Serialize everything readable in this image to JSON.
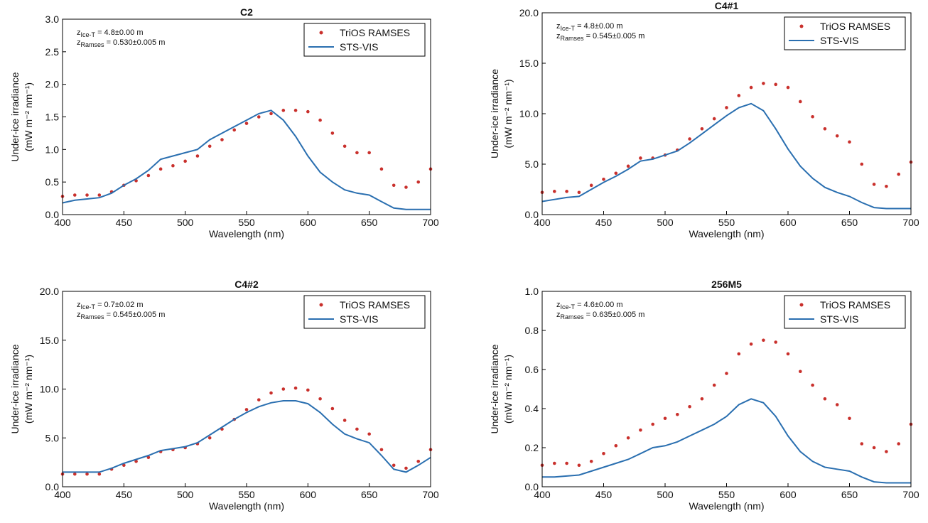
{
  "chart_data": [
    {
      "type": "line",
      "title": "C2",
      "xlabel": "Wavelength (nm)",
      "ylabel": [
        "Under-ice irradiance",
        "(mW m⁻² nm⁻¹)"
      ],
      "x": [
        400,
        410,
        420,
        430,
        440,
        450,
        460,
        470,
        480,
        490,
        500,
        510,
        520,
        530,
        540,
        550,
        560,
        570,
        580,
        590,
        600,
        610,
        620,
        630,
        640,
        650,
        660,
        670,
        680,
        690,
        700
      ],
      "series": [
        {
          "name": "TriOS RAMSES",
          "style": "markers",
          "color": "#c9302c",
          "values": [
            0.28,
            0.3,
            0.3,
            0.3,
            0.35,
            0.45,
            0.52,
            0.6,
            0.7,
            0.75,
            0.82,
            0.9,
            1.05,
            1.15,
            1.3,
            1.4,
            1.5,
            1.55,
            1.6,
            1.6,
            1.58,
            1.45,
            1.25,
            1.05,
            0.95,
            0.95,
            0.7,
            0.45,
            0.42,
            0.5,
            0.7
          ]
        },
        {
          "name": "STS-VIS",
          "style": "line",
          "color": "#2a6fb0",
          "values": [
            0.18,
            0.22,
            0.24,
            0.26,
            0.33,
            0.45,
            0.55,
            0.68,
            0.85,
            0.9,
            0.95,
            1.0,
            1.15,
            1.25,
            1.35,
            1.45,
            1.55,
            1.6,
            1.45,
            1.2,
            0.9,
            0.65,
            0.5,
            0.38,
            0.33,
            0.3,
            0.2,
            0.1,
            0.08,
            0.08,
            0.08
          ]
        }
      ],
      "annotations": [
        {
          "symbol": "z",
          "subscript": "Ice-T",
          "text": " = 4.8±0.00 m"
        },
        {
          "symbol": "z",
          "subscript": "Ramses",
          "text": " = 0.530±0.005 m"
        }
      ],
      "xlim": [
        400,
        700
      ],
      "xticks": [
        400,
        450,
        500,
        550,
        600,
        650,
        700
      ],
      "ylim": [
        0,
        3
      ],
      "yticks": [
        {
          "value": 0,
          "label": "0.0"
        },
        0.5,
        {
          "value": 1,
          "label": "1.0"
        },
        1.5,
        {
          "value": 2,
          "label": "2.0"
        },
        2.5,
        {
          "value": 3,
          "label": "3.0"
        }
      ],
      "legend": "upper right"
    },
    {
      "type": "line",
      "title": "C4#1",
      "xlabel": "Wavelength (nm)",
      "ylabel": [
        "Under-ice irradiance",
        "(mW m⁻² nm⁻¹)"
      ],
      "x": [
        400,
        410,
        420,
        430,
        440,
        450,
        460,
        470,
        480,
        490,
        500,
        510,
        520,
        530,
        540,
        550,
        560,
        570,
        580,
        590,
        600,
        610,
        620,
        630,
        640,
        650,
        660,
        670,
        680,
        690,
        700
      ],
      "series": [
        {
          "name": "TriOS RAMSES",
          "style": "markers",
          "color": "#c9302c",
          "values": [
            2.2,
            2.3,
            2.3,
            2.2,
            2.9,
            3.5,
            4.1,
            4.8,
            5.6,
            5.6,
            5.9,
            6.4,
            7.5,
            8.5,
            9.5,
            10.6,
            11.8,
            12.6,
            13.0,
            12.9,
            12.6,
            11.2,
            9.7,
            8.5,
            7.8,
            7.2,
            5.0,
            3.0,
            2.8,
            4.0,
            5.2
          ]
        },
        {
          "name": "STS-VIS",
          "style": "line",
          "color": "#2a6fb0",
          "values": [
            1.3,
            1.5,
            1.7,
            1.8,
            2.5,
            3.2,
            3.8,
            4.5,
            5.3,
            5.5,
            5.9,
            6.3,
            7.1,
            8.0,
            8.9,
            9.8,
            10.6,
            11.0,
            10.3,
            8.5,
            6.5,
            4.8,
            3.6,
            2.7,
            2.2,
            1.8,
            1.2,
            0.7,
            0.6,
            0.6,
            0.6
          ]
        }
      ],
      "annotations": [
        {
          "symbol": "z",
          "subscript": "Ice-T",
          "text": " = 4.8±0.00 m"
        },
        {
          "symbol": "z",
          "subscript": "Ramses",
          "text": " = 0.545±0.005 m"
        }
      ],
      "xlim": [
        400,
        700
      ],
      "xticks": [
        400,
        450,
        500,
        550,
        600,
        650,
        700
      ],
      "ylim": [
        0,
        20
      ],
      "yticks": [
        {
          "value": 0,
          "label": "0.0"
        },
        {
          "value": 5,
          "label": "5.0"
        },
        {
          "value": 10,
          "label": "10.0"
        },
        {
          "value": 15,
          "label": "15.0"
        },
        {
          "value": 20,
          "label": "20.0"
        }
      ],
      "legend": "upper right"
    },
    {
      "type": "line",
      "title": "C4#2",
      "xlabel": "Wavelength (nm)",
      "ylabel": [
        "Under-ice irradiance",
        "(mW m⁻² nm⁻¹)"
      ],
      "x": [
        400,
        410,
        420,
        430,
        440,
        450,
        460,
        470,
        480,
        490,
        500,
        510,
        520,
        530,
        540,
        550,
        560,
        570,
        580,
        590,
        600,
        610,
        620,
        630,
        640,
        650,
        660,
        670,
        680,
        690,
        700
      ],
      "series": [
        {
          "name": "TriOS RAMSES",
          "style": "markers",
          "color": "#c9302c",
          "values": [
            1.3,
            1.3,
            1.3,
            1.3,
            1.8,
            2.2,
            2.6,
            3.0,
            3.6,
            3.8,
            4.0,
            4.4,
            5.0,
            5.9,
            6.9,
            7.9,
            8.9,
            9.6,
            10.0,
            10.1,
            9.9,
            9.0,
            8.0,
            6.8,
            5.9,
            5.4,
            3.8,
            2.2,
            1.9,
            2.6,
            3.8
          ]
        },
        {
          "name": "STS-VIS",
          "style": "line",
          "color": "#2a6fb0",
          "values": [
            1.5,
            1.5,
            1.5,
            1.5,
            1.9,
            2.4,
            2.8,
            3.2,
            3.7,
            3.9,
            4.1,
            4.5,
            5.3,
            6.1,
            6.9,
            7.6,
            8.2,
            8.6,
            8.8,
            8.8,
            8.5,
            7.6,
            6.4,
            5.4,
            4.9,
            4.5,
            3.2,
            1.8,
            1.5,
            2.2,
            3.0
          ]
        }
      ],
      "annotations": [
        {
          "symbol": "z",
          "subscript": "Ice-T",
          "text": " = 0.7±0.02 m"
        },
        {
          "symbol": "z",
          "subscript": "Ramses",
          "text": " = 0.545±0.005 m"
        }
      ],
      "xlim": [
        400,
        700
      ],
      "xticks": [
        400,
        450,
        500,
        550,
        600,
        650,
        700
      ],
      "ylim": [
        0,
        20
      ],
      "yticks": [
        {
          "value": 0,
          "label": "0.0"
        },
        {
          "value": 5,
          "label": "5.0"
        },
        {
          "value": 10,
          "label": "10.0"
        },
        {
          "value": 15,
          "label": "15.0"
        },
        {
          "value": 20,
          "label": "20.0"
        }
      ],
      "legend": "upper right"
    },
    {
      "type": "line",
      "title": "256M5",
      "xlabel": "Wavelength (nm)",
      "ylabel": [
        "Under-ice irradiance",
        "(mW m⁻² nm⁻¹)"
      ],
      "x": [
        400,
        410,
        420,
        430,
        440,
        450,
        460,
        470,
        480,
        490,
        500,
        510,
        520,
        530,
        540,
        550,
        560,
        570,
        580,
        590,
        600,
        610,
        620,
        630,
        640,
        650,
        660,
        670,
        680,
        690,
        700
      ],
      "series": [
        {
          "name": "TriOS RAMSES",
          "style": "markers",
          "color": "#c9302c",
          "values": [
            0.11,
            0.12,
            0.12,
            0.11,
            0.13,
            0.17,
            0.21,
            0.25,
            0.29,
            0.32,
            0.35,
            0.37,
            0.41,
            0.45,
            0.52,
            0.58,
            0.68,
            0.73,
            0.75,
            0.74,
            0.68,
            0.59,
            0.52,
            0.45,
            0.42,
            0.35,
            0.22,
            0.2,
            0.18,
            0.22,
            0.32
          ]
        },
        {
          "name": "STS-VIS",
          "style": "line",
          "color": "#2a6fb0",
          "values": [
            0.05,
            0.05,
            0.055,
            0.06,
            0.08,
            0.1,
            0.12,
            0.14,
            0.17,
            0.2,
            0.21,
            0.23,
            0.26,
            0.29,
            0.32,
            0.36,
            0.42,
            0.45,
            0.43,
            0.36,
            0.26,
            0.18,
            0.13,
            0.1,
            0.09,
            0.08,
            0.05,
            0.025,
            0.02,
            0.02,
            0.02
          ]
        }
      ],
      "annotations": [
        {
          "symbol": "z",
          "subscript": "Ice-T",
          "text": " = 4.6±0.00 m"
        },
        {
          "symbol": "z",
          "subscript": "Ramses",
          "text": " = 0.635±0.005 m"
        }
      ],
      "xlim": [
        400,
        700
      ],
      "xticks": [
        400,
        450,
        500,
        550,
        600,
        650,
        700
      ],
      "ylim": [
        0,
        1
      ],
      "yticks": [
        {
          "value": 0,
          "label": "0.0"
        },
        0.2,
        0.4,
        0.6,
        0.8,
        {
          "value": 1,
          "label": "1.0"
        }
      ],
      "legend": "upper right"
    }
  ]
}
